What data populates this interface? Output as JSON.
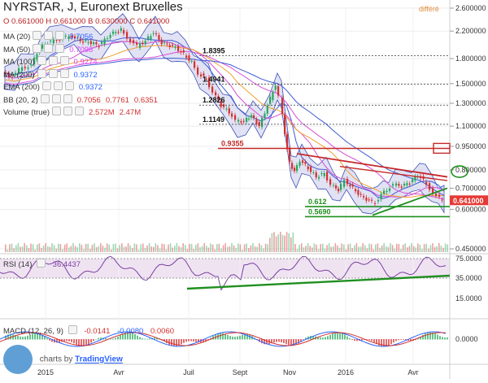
{
  "header": {
    "title": "NYRSTAR, J, Euronext Bruxelles",
    "delayed_badge": "différé"
  },
  "ohlc": {
    "o_label": "O",
    "o": "0.661000",
    "h_label": "H",
    "h": "0.661000",
    "b_label": "B",
    "b": "0.630000",
    "c_label": "C",
    "c": "0.641000"
  },
  "indicators": [
    {
      "name": "MA (20)",
      "values": [
        "0.7056"
      ],
      "color": "#2962ff"
    },
    {
      "name": "MA (50)",
      "values": [
        "0.7098"
      ],
      "color": "#e040fb"
    },
    {
      "name": "MA (100)",
      "values": [
        "0.9274"
      ],
      "color": "#e040fb"
    },
    {
      "name": "MA (200)",
      "values": [
        "0.9372"
      ],
      "color": "#2962ff"
    },
    {
      "name": "EMA (200)",
      "values": [
        "0.9372"
      ],
      "color": "#2962ff"
    },
    {
      "name": "BB (20, 2)",
      "values": [
        "0.7056",
        "0.7761",
        "0.6351"
      ],
      "color": "#d32f2f"
    },
    {
      "name": "Volume (true)",
      "values": [
        "2.572M",
        "2.47M"
      ],
      "color": "#d32f2f"
    }
  ],
  "rsi": {
    "label": "RSI (14)",
    "value": "36.4437"
  },
  "macd": {
    "label": "MACD (12, 26, 9)",
    "values": [
      "-0.0141",
      "-0.0080",
      "0.0060"
    ]
  },
  "brand": {
    "prefix": "charts by",
    "name": "TradingView"
  },
  "colors": {
    "up": "#26a65b",
    "down": "#d32f2f",
    "bb_fill": "#c9cbeb",
    "bb_line": "#3f51b5",
    "ma_blue": "#3f5bd6",
    "ma_magenta": "#d64fd6",
    "ma_orange": "#f0a030",
    "trend_green": "#1f8f1f",
    "trend_red": "#c62828",
    "current_price_bg": "#e53935"
  },
  "chart_data": {
    "type": "line",
    "title": "NYRSTAR, J, Euronext Bruxelles",
    "x_tick_labels": [
      "2015",
      "Avr",
      "Juil",
      "Sept",
      "Nov",
      "2016",
      "Avr"
    ],
    "price_axis": {
      "scale": "log",
      "ticks": [
        "2.600000",
        "2.200000",
        "1.800000",
        "1.500000",
        "1.300000",
        "1.100000",
        "0.950000",
        "0.800000",
        "0.700000",
        "0.600000",
        "0.450000"
      ],
      "tick_values": [
        2.6,
        2.2,
        1.8,
        1.5,
        1.3,
        1.1,
        0.95,
        0.8,
        0.7,
        0.6,
        0.45
      ],
      "current_price": "0.641000"
    },
    "price_series": {
      "name": "NYRSTAR",
      "x_index": [
        0,
        12,
        20,
        35,
        45,
        55,
        70,
        85,
        95,
        108,
        118,
        132,
        145,
        157,
        165,
        175,
        185,
        195,
        205,
        212,
        222,
        232,
        240,
        250,
        258,
        268,
        278,
        286,
        296,
        305,
        315,
        325,
        335,
        340,
        346,
        352,
        358,
        365,
        375,
        385,
        395,
        403,
        412,
        420,
        430,
        440,
        450,
        458,
        465,
        472,
        480,
        490,
        500,
        510,
        517,
        525,
        533,
        540
      ],
      "close": [
        1.62,
        1.58,
        1.66,
        1.72,
        1.95,
        2.02,
        2.08,
        2.12,
        2.05,
        2.02,
        1.98,
        2.15,
        2.22,
        2.05,
        1.97,
        2.05,
        2.18,
        2.02,
        1.98,
        1.95,
        1.86,
        1.75,
        1.62,
        1.55,
        1.41,
        1.28,
        1.22,
        1.14,
        1.14,
        1.19,
        1.1,
        1.28,
        1.49,
        1.36,
        1.04,
        0.84,
        0.79,
        0.86,
        0.81,
        0.76,
        0.78,
        0.72,
        0.69,
        0.74,
        0.7,
        0.66,
        0.64,
        0.63,
        0.67,
        0.69,
        0.72,
        0.71,
        0.73,
        0.77,
        0.74,
        0.7,
        0.66,
        0.641
      ]
    },
    "annotations": [
      {
        "label": "1.4941",
        "y": 1.4941
      },
      {
        "label": "1.2826",
        "y": 1.2826
      },
      {
        "label": "1.1149",
        "y": 1.1149
      },
      {
        "label": "1.8395",
        "y": 1.8395
      },
      {
        "label": "0.9355",
        "y": 0.9355
      },
      {
        "label": "0.612",
        "y": 0.612
      },
      {
        "label": "0.5690",
        "y": 0.569
      }
    ],
    "rsi_axis": {
      "ticks": [
        "75.0000",
        "35.0000",
        "15.0000"
      ]
    },
    "macd_axis": {
      "ticks": [
        "0.0000"
      ]
    }
  }
}
